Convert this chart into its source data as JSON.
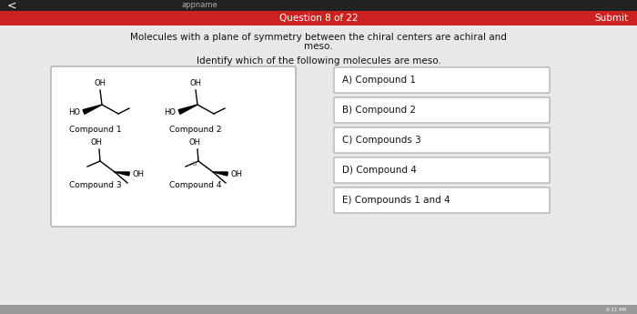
{
  "bg_color": "#e8e8e8",
  "header_color": "#cc2222",
  "header_text": "Question 8 of 22",
  "submit_text": "Submit",
  "main_text_line1": "Molecules with a plane of symmetry between the chiral centers are achiral and",
  "main_text_line2": "meso.",
  "question_text": "Identify which of the following molecules are meso.",
  "compound_box_color": "#ffffff",
  "compound_box_edge": "#999999",
  "answer_box_color": "#ffffff",
  "answer_box_edge": "#999999",
  "answers": [
    "A) Compound 1",
    "B) Compound 2",
    "C) Compounds 3",
    "D) Compound 4",
    "E) Compounds 1 and 4"
  ]
}
